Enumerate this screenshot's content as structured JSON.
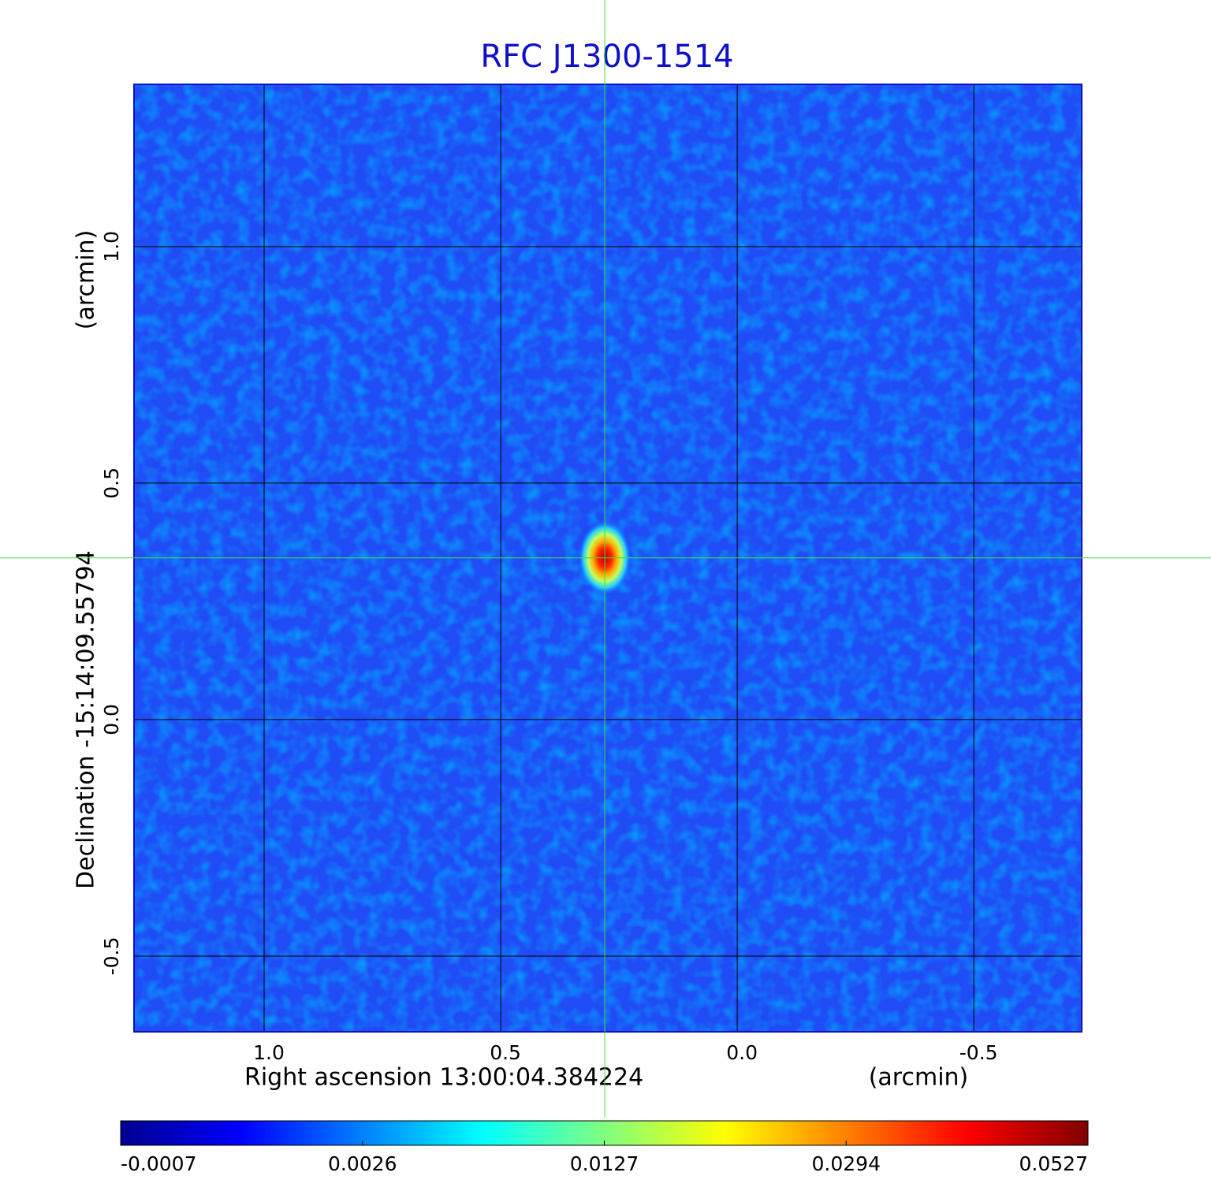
{
  "chart_data": {
    "type": "image",
    "title": "RFC J1300-1514",
    "x_label": "Right ascension  13:00:04.384224",
    "x_unit": "(arcmin)",
    "y_label": "Declination  -15:14:09.55794",
    "y_unit": "(arcmin)",
    "xlim": [
      1.275,
      -0.728
    ],
    "ylim": [
      -0.66,
      1.343
    ],
    "xticks": [
      {
        "value": 1.0,
        "label": "1.0"
      },
      0.5,
      {
        "value": 0.0,
        "label": "0.0"
      },
      -0.5
    ],
    "yticks": [
      -0.5,
      {
        "value": 0.0,
        "label": "0.0"
      },
      0.5,
      {
        "value": 1.0,
        "label": "1.0"
      }
    ],
    "grid": true,
    "crosshair": {
      "x": 0.28,
      "y": 0.342
    },
    "colorbar_ticks": [
      -0.0007,
      0.0026,
      0.0127,
      0.0294,
      0.0527
    ],
    "colormap": [
      "#00008f",
      "#0000ff",
      "#0080ff",
      "#00ffff",
      "#80ff80",
      "#ffff00",
      "#ff8000",
      "#ff0000",
      "#800000"
    ]
  }
}
